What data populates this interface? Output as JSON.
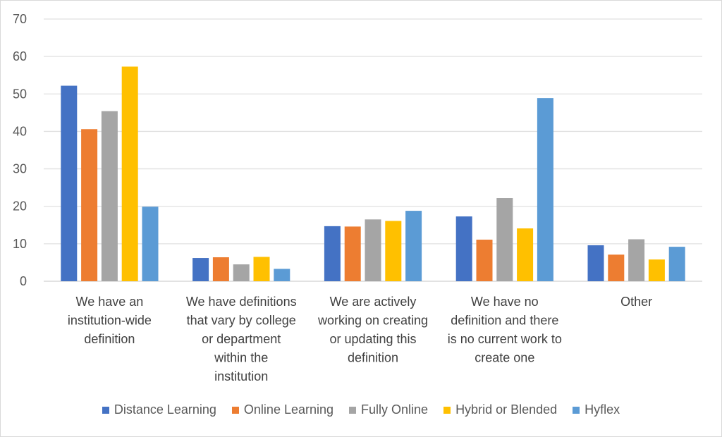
{
  "chart_data": {
    "type": "bar",
    "title": "",
    "xlabel": "",
    "ylabel": "",
    "ylim": [
      0,
      70
    ],
    "yticks": [
      0,
      10,
      20,
      30,
      40,
      50,
      60,
      70
    ],
    "grid": true,
    "legend_position": "bottom",
    "categories": [
      [
        "We have an",
        "institution-wide",
        "definition"
      ],
      [
        "We have definitions",
        "that vary by college",
        "or department",
        "within the",
        "institution"
      ],
      [
        "We are actively",
        "working on creating",
        "or updating this",
        "definition"
      ],
      [
        "We have no",
        "definition and there",
        "is no current work to",
        "create one"
      ],
      [
        "Other"
      ]
    ],
    "series": [
      {
        "name": "Distance Learning",
        "color": "#4472C4",
        "values": [
          52.2,
          6.2,
          14.7,
          17.3,
          9.6
        ]
      },
      {
        "name": "Online Learning",
        "color": "#ED7D31",
        "values": [
          40.6,
          6.4,
          14.6,
          11.1,
          7.1
        ]
      },
      {
        "name": "Fully Online",
        "color": "#A5A5A5",
        "values": [
          45.4,
          4.5,
          16.5,
          22.2,
          11.2
        ]
      },
      {
        "name": "Hybrid or Blended",
        "color": "#FFC000",
        "values": [
          57.3,
          6.5,
          16.1,
          14.1,
          5.8
        ]
      },
      {
        "name": "Hyflex",
        "color": "#5B9BD5",
        "values": [
          19.9,
          3.3,
          18.8,
          48.9,
          9.2
        ]
      }
    ]
  }
}
